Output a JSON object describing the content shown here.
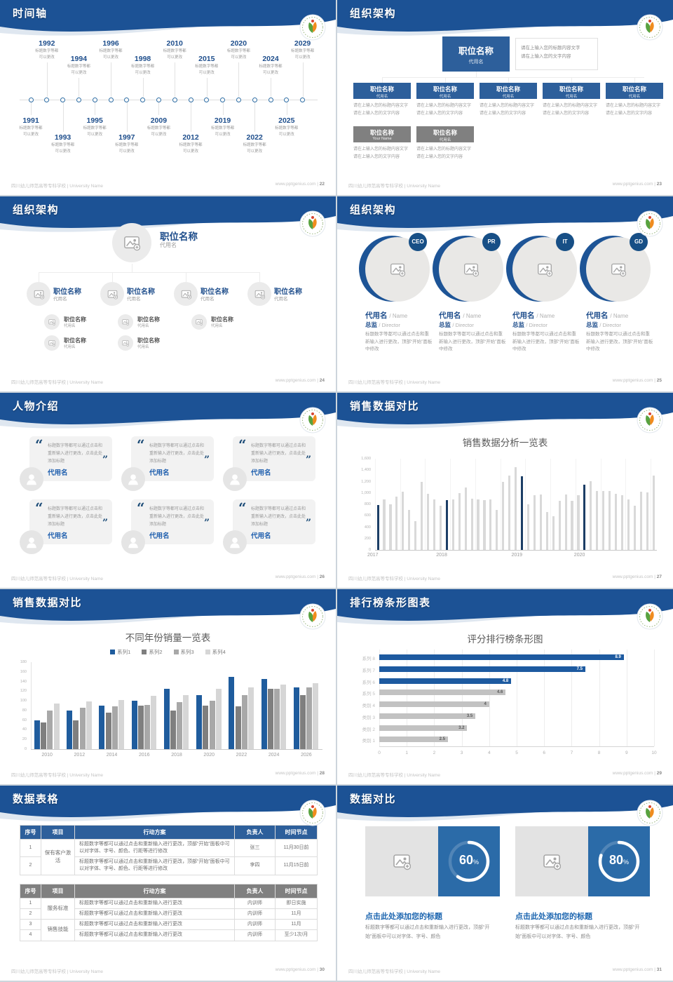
{
  "footer": {
    "school": "四川幼儿师范高等专科学校 | University Name",
    "site": "www.pptgenius.com"
  },
  "slides": [
    {
      "title": "时间轴",
      "page_no": "22",
      "timeline": {
        "caption_line1": "标题数字等都",
        "caption_line2": "可以更改",
        "items": [
          {
            "year": "1991",
            "side": "bottom",
            "depth": 1
          },
          {
            "year": "1992",
            "side": "top",
            "depth": 2
          },
          {
            "year": "1993",
            "side": "bottom",
            "depth": 2
          },
          {
            "year": "1994",
            "side": "top",
            "depth": 1
          },
          {
            "year": "1995",
            "side": "bottom",
            "depth": 1
          },
          {
            "year": "1996",
            "side": "top",
            "depth": 2
          },
          {
            "year": "1997",
            "side": "bottom",
            "depth": 2
          },
          {
            "year": "1998",
            "side": "top",
            "depth": 1
          },
          {
            "year": "2009",
            "side": "bottom",
            "depth": 1
          },
          {
            "year": "2010",
            "side": "top",
            "depth": 2
          },
          {
            "year": "2012",
            "side": "bottom",
            "depth": 2
          },
          {
            "year": "2015",
            "side": "top",
            "depth": 1
          },
          {
            "year": "2019",
            "side": "bottom",
            "depth": 1
          },
          {
            "year": "2020",
            "side": "top",
            "depth": 2
          },
          {
            "year": "2022",
            "side": "bottom",
            "depth": 2
          },
          {
            "year": "2024",
            "side": "top",
            "depth": 1
          },
          {
            "year": "2025",
            "side": "bottom",
            "depth": 1
          },
          {
            "year": "2029",
            "side": "top",
            "depth": 2
          }
        ]
      }
    },
    {
      "title": "组织架构",
      "page_no": "23",
      "org": {
        "root": {
          "title": "职位名称",
          "sub": "代用名",
          "note_line1": "请在上输入您的标题内容文字",
          "note_line2": "请在上输入您的文字内容"
        },
        "level1": [
          {
            "title": "职位名称",
            "sub": "代用名",
            "line1": "请在上输入您的标题内容文字",
            "line2": "请在上输入您的文字内容"
          },
          {
            "title": "职位名称",
            "sub": "代用名",
            "line1": "请在上输入您的标题内容文字",
            "line2": "请在上输入您的文字内容"
          },
          {
            "title": "职位名称",
            "sub": "代用名",
            "line1": "请在上输入您的标题内容文字",
            "line2": "请在上输入您的文字内容"
          },
          {
            "title": "职位名称",
            "sub": "代用名",
            "line1": "请在上输入您的标题内容文字",
            "line2": "请在上输入您的文字内容"
          },
          {
            "title": "职位名称",
            "sub": "代用名",
            "line1": "请在上输入您的标题内容文字",
            "line2": "请在上输入您的文字内容"
          }
        ],
        "level2": [
          {
            "title": "职位名称",
            "sub": "Your Name",
            "line1": "请在上输入您的标题内容文字",
            "line2": "请在上输入您的文字内容"
          },
          {
            "title": "职位名称",
            "sub": "代用名",
            "line1": "请在上输入您的标题内容文字",
            "line2": "请在上输入您的文字内容"
          }
        ]
      }
    },
    {
      "title": "组织架构",
      "page_no": "24",
      "org": {
        "root": {
          "title": "职位名称",
          "sub": "代用名"
        },
        "nodes": [
          {
            "title": "职位名称",
            "sub": "代用名",
            "children": [
              {
                "title": "职位名称",
                "sub": "代用名"
              },
              {
                "title": "职位名称",
                "sub": "代用名"
              }
            ]
          },
          {
            "title": "职位名称",
            "sub": "代用名",
            "children": [
              {
                "title": "职位名称",
                "sub": "代用名"
              },
              {
                "title": "职位名称",
                "sub": "代用名"
              }
            ]
          },
          {
            "title": "职位名称",
            "sub": "代用名",
            "children": [
              {
                "title": "职位名称",
                "sub": "代用名"
              }
            ]
          },
          {
            "title": "职位名称",
            "sub": "代用名",
            "children": []
          }
        ]
      }
    },
    {
      "title": "组织架构",
      "page_no": "25",
      "org": {
        "roles": [
          {
            "badge": "CEO",
            "name": "代用名",
            "name_en": "/ Name",
            "role": "总监",
            "role_en": "/ Director",
            "body": "标题数字等都可以通过点击和重新输入进行更改，顶部“开始”面板中修改"
          },
          {
            "badge": "PR",
            "name": "代用名",
            "name_en": "/ Name",
            "role": "总监",
            "role_en": "/ Director",
            "body": "标题数字等都可以通过点击和重新输入进行更改，顶部“开始”面板中修改"
          },
          {
            "badge": "IT",
            "name": "代用名",
            "name_en": "/ Name",
            "role": "总监",
            "role_en": "/ Director",
            "body": "标题数字等都可以通过点击和重新输入进行更改，顶部“开始”面板中修改"
          },
          {
            "badge": "GD",
            "name": "代用名",
            "name_en": "/ Name",
            "role": "总监",
            "role_en": "/ Director",
            "body": "标题数字等都可以通过点击和重新输入进行更改，顶部“开始”面板中修改"
          }
        ]
      }
    },
    {
      "title": "人物介绍",
      "page_no": "26",
      "people": {
        "quote_open": "“",
        "quote_close": "”",
        "cards": [
          {
            "quote": "标题数字等都可以通过点击和重新输入进行更改，点击此处添加标题",
            "name": "代用名"
          },
          {
            "quote": "标题数字等都可以通过点击和重新输入进行更改，点击此处添加标题",
            "name": "代用名"
          },
          {
            "quote": "标题数字等都可以通过点击和重新输入进行更改，点击此处添加标题",
            "name": "代用名"
          },
          {
            "quote": "标题数字等都可以通过点击和重新输入进行更改，点击此处添加标题",
            "name": "代用名"
          },
          {
            "quote": "标题数字等都可以通过点击和重新输入进行更改，点击此处添加标题",
            "name": "代用名"
          },
          {
            "quote": "标题数字等都可以通过点击和重新输入进行更改，点击此处添加标题",
            "name": "代用名"
          }
        ]
      }
    },
    {
      "title": "销售数据对比",
      "page_no": "27",
      "chart_data": {
        "type": "bar",
        "title": "销售数据分析一览表",
        "ymax": 1600,
        "y_labels": [
          "0",
          "200",
          "400",
          "600",
          "800",
          "1,000",
          "1,200",
          "1,400",
          "1,600"
        ],
        "values": [
          790,
          890,
          800,
          940,
          1020,
          700,
          510,
          1200,
          990,
          890,
          775,
          880,
          890,
          1000,
          1100,
          900,
          890,
          870,
          890,
          700,
          1200,
          1300,
          1455,
          1290,
          800,
          960,
          975,
          665,
          590,
          865,
          975,
          865,
          960,
          1140,
          1205,
          1030,
          1040,
          1030,
          990,
          965,
          890,
          775,
          1020,
          1010,
          1300
        ],
        "highlight_indexes": [
          0,
          11,
          23,
          33
        ],
        "x_ticks": [
          {
            "index": 0,
            "label": "2017"
          },
          {
            "index": 11,
            "label": "2018"
          },
          {
            "index": 23,
            "label": "2019"
          },
          {
            "index": 33,
            "label": "2020"
          }
        ],
        "bar_color": "#d9d9d9",
        "highlight_color": "#1c3e66"
      }
    },
    {
      "title": "销售数据对比",
      "page_no": "28",
      "chart_data": {
        "type": "grouped-bar",
        "title": "不同年份销量一览表",
        "categories": [
          "2010",
          "2012",
          "2014",
          "2016",
          "2018",
          "2020",
          "2022",
          "2024",
          "2026"
        ],
        "series": [
          {
            "name": "系列1",
            "color": "#1f5c9d",
            "values": [
              60,
              80,
              90,
              100,
              125,
              112,
              150,
              145,
              128
            ]
          },
          {
            "name": "系列2",
            "color": "#7f7f7f",
            "values": [
              55,
              60,
              75,
              90,
              80,
              90,
              88,
              125,
              112
            ]
          },
          {
            "name": "系列3",
            "color": "#a8a8a8",
            "values": [
              80,
              86,
              88,
              92,
              97,
              100,
              112,
              125,
              128
            ]
          },
          {
            "name": "系列4",
            "color": "#d6d6d6",
            "values": [
              95,
              99,
              102,
              110,
              112,
              125,
              128,
              133,
              136
            ]
          }
        ],
        "ymax": 180,
        "y_labels": [
          "0",
          "20",
          "40",
          "60",
          "80",
          "100",
          "120",
          "140",
          "160",
          "180"
        ],
        "legend_position": "top"
      }
    },
    {
      "title": "排行榜条形图表",
      "page_no": "29",
      "chart_data": {
        "type": "hbar",
        "title": "评分排行榜条形图",
        "categories": [
          "系列 8",
          "系列 7",
          "系列 6",
          "系列 5",
          "类别 4",
          "类别 3",
          "类别 2",
          "类别 1"
        ],
        "values": [
          8.9,
          7.5,
          4.8,
          4.6,
          4,
          3.5,
          3.2,
          2.5
        ],
        "value_labels": [
          "8.9",
          "7.5",
          "4.8",
          "4.6",
          "4",
          "3.5",
          "3.2",
          "2.5"
        ],
        "blue_count": 3,
        "blue_color": "#1d5aa0",
        "gray_color": "#c2c2c2",
        "xmax": 10,
        "x_labels": [
          "0",
          "1",
          "2",
          "3",
          "4",
          "5",
          "6",
          "7",
          "8",
          "9",
          "10"
        ]
      }
    },
    {
      "title": "数据表格",
      "page_no": "30",
      "tables": [
        {
          "theme": "blue",
          "header_color": "#2d5f9b",
          "header": [
            "序号",
            "项目",
            "行动方案",
            "负责人",
            "时间节点"
          ],
          "rows": [
            {
              "no": "1",
              "project": "保有客户激活",
              "project_rowspan": 2,
              "plan": "标题数字等都可以通过点击和重新输入进行更改，顶部“开始”面板中可以对字体、字号、颜色、行距等进行修改",
              "owner": "张三",
              "time": "11月30日前"
            },
            {
              "no": "2",
              "plan": "标题数字等都可以通过点击和重新输入进行更改，顶部“开始”面板中可以对字体、字号、颜色、行距等进行修改",
              "owner": "李四",
              "time": "11月15日前"
            }
          ]
        },
        {
          "theme": "gray",
          "header_color": "#808080",
          "header": [
            "序号",
            "项目",
            "行动方案",
            "负责人",
            "时间节点"
          ],
          "rows": [
            {
              "no": "1",
              "project": "服务标准",
              "project_rowspan": 2,
              "plan": "标题数字等都可以通过点击和重新输入进行更改",
              "owner": "内训师",
              "time": "即日实施"
            },
            {
              "no": "2",
              "plan": "标题数字等都可以通过点击和重新输入进行更改",
              "owner": "内训师",
              "time": "11月"
            },
            {
              "no": "3",
              "project": "销售技能",
              "project_rowspan": 2,
              "plan": "标题数字等都可以通过点击和重新输入进行更改",
              "owner": "内训师",
              "time": "11月"
            },
            {
              "no": "4",
              "plan": "标题数字等都可以通过点击和重新输入进行更改",
              "owner": "内训师",
              "time": "至少1次/月"
            }
          ]
        }
      ]
    },
    {
      "title": "数据对比",
      "page_no": "31",
      "compare": {
        "panels": [
          {
            "percent": 60,
            "percent_label": "60",
            "unit": "%",
            "title": "点击此处添加您的标题",
            "body": "标题数字等都可以通过点击和重新输入进行更改，顶部“开始”面板中可以对字体、字号、颜色"
          },
          {
            "percent": 80,
            "percent_label": "80",
            "unit": "%",
            "title": "点击此处添加您的标题",
            "body": "标题数字等都可以通过点击和重新输入进行更改，顶部“开始”面板中可以对字体、字号、颜色"
          }
        ]
      }
    }
  ]
}
